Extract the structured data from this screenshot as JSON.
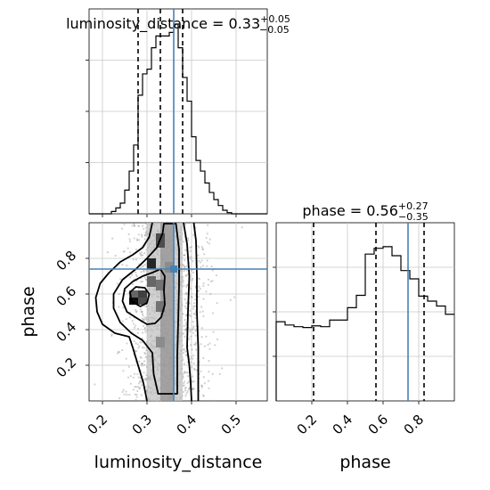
{
  "chart_data": [
    {
      "type": "histogram",
      "panel": "luminosity_distance marginal",
      "title": {
        "prefix": "luminosity_distance = 0.33",
        "sup": "+0.05",
        "sub": "−0.05"
      },
      "xlim": [
        0.17,
        0.57
      ],
      "x_ticks": [
        0.2,
        0.3,
        0.4,
        0.5
      ],
      "y_ticks_count": 3,
      "grid": true,
      "bin_edges": [
        0.17,
        0.18,
        0.19,
        0.2,
        0.21,
        0.22,
        0.23,
        0.24,
        0.25,
        0.26,
        0.27,
        0.28,
        0.29,
        0.3,
        0.31,
        0.32,
        0.33,
        0.34,
        0.35,
        0.36,
        0.37,
        0.38,
        0.39,
        0.4,
        0.41,
        0.42,
        0.43,
        0.44,
        0.45,
        0.46,
        0.47,
        0.48,
        0.49,
        0.5,
        0.51,
        0.52,
        0.53,
        0.54,
        0.55,
        0.56,
        0.57
      ],
      "counts": [
        0,
        0,
        0,
        0,
        0,
        2,
        5,
        9,
        20,
        36,
        58,
        100,
        118,
        122,
        140,
        150,
        150,
        150,
        153,
        160,
        140,
        115,
        95,
        65,
        45,
        36,
        26,
        18,
        12,
        7,
        3,
        1,
        0,
        0,
        0,
        0,
        0,
        0,
        0,
        0
      ],
      "ymax": 160,
      "quantiles": [
        0.28,
        0.33,
        0.38
      ],
      "truth": 0.36
    },
    {
      "type": "scatter-contour",
      "panel": "luminosity_distance vs phase",
      "xlabel": "luminosity_distance",
      "ylabel": "phase",
      "xlim": [
        0.17,
        0.57
      ],
      "ylim": [
        0.0,
        1.0
      ],
      "x_ticks": [
        0.2,
        0.3,
        0.4,
        0.5
      ],
      "y_ticks": [
        0.2,
        0.4,
        0.6,
        0.8
      ],
      "truth": {
        "x": 0.36,
        "y": 0.74
      },
      "contours": [
        [
          [
            0.285,
            0.53
          ],
          [
            0.265,
            0.56
          ],
          [
            0.262,
            0.61
          ],
          [
            0.275,
            0.64
          ],
          [
            0.295,
            0.635
          ],
          [
            0.305,
            0.6
          ],
          [
            0.3,
            0.55
          ]
        ],
        [
          [
            0.3,
            0.43
          ],
          [
            0.28,
            0.46
          ],
          [
            0.255,
            0.5
          ],
          [
            0.245,
            0.56
          ],
          [
            0.25,
            0.63
          ],
          [
            0.268,
            0.67
          ],
          [
            0.29,
            0.7
          ],
          [
            0.312,
            0.72
          ],
          [
            0.33,
            0.74
          ],
          [
            0.34,
            0.7
          ],
          [
            0.338,
            0.62
          ],
          [
            0.34,
            0.54
          ],
          [
            0.332,
            0.47
          ],
          [
            0.318,
            0.435
          ]
        ],
        [
          [
            0.325,
            0.04
          ],
          [
            0.315,
            0.15
          ],
          [
            0.312,
            0.27
          ],
          [
            0.29,
            0.34
          ],
          [
            0.265,
            0.38
          ],
          [
            0.24,
            0.44
          ],
          [
            0.225,
            0.52
          ],
          [
            0.225,
            0.6
          ],
          [
            0.245,
            0.68
          ],
          [
            0.275,
            0.74
          ],
          [
            0.3,
            0.8
          ],
          [
            0.322,
            0.86
          ],
          [
            0.335,
            0.94
          ],
          [
            0.338,
            0.995
          ],
          [
            0.365,
            0.995
          ],
          [
            0.372,
            0.85
          ],
          [
            0.372,
            0.65
          ],
          [
            0.37,
            0.44
          ],
          [
            0.368,
            0.26
          ],
          [
            0.368,
            0.04
          ]
        ],
        [
          [
            0.3,
            0.0
          ],
          [
            0.292,
            0.1
          ],
          [
            0.28,
            0.2
          ],
          [
            0.268,
            0.3
          ],
          [
            0.26,
            0.36
          ],
          [
            0.228,
            0.38
          ],
          [
            0.2,
            0.43
          ],
          [
            0.188,
            0.5
          ],
          [
            0.185,
            0.58
          ],
          [
            0.195,
            0.66
          ],
          [
            0.215,
            0.72
          ],
          [
            0.24,
            0.78
          ],
          [
            0.268,
            0.82
          ],
          [
            0.29,
            0.86
          ],
          [
            0.305,
            0.92
          ],
          [
            0.312,
            1.0
          ]
        ],
        [
          [
            0.382,
            1.0
          ],
          [
            0.39,
            0.88
          ],
          [
            0.395,
            0.7
          ],
          [
            0.392,
            0.5
          ],
          [
            0.39,
            0.3
          ],
          [
            0.395,
            0.2
          ],
          [
            0.398,
            0.1
          ],
          [
            0.4,
            0.0
          ]
        ],
        [
          [
            0.405,
            1.0
          ],
          [
            0.41,
            0.9
          ],
          [
            0.412,
            0.7
          ],
          [
            0.412,
            0.5
          ],
          [
            0.415,
            0.3
          ],
          [
            0.415,
            0.18
          ],
          [
            0.415,
            0.0
          ]
        ]
      ],
      "density_cells": [
        {
          "x0": 0.26,
          "x1": 0.28,
          "y0": 0.54,
          "y1": 0.58,
          "v": 0.95
        },
        {
          "x0": 0.28,
          "x1": 0.3,
          "y0": 0.54,
          "y1": 0.58,
          "v": 0.7
        },
        {
          "x0": 0.28,
          "x1": 0.3,
          "y0": 0.58,
          "y1": 0.62,
          "v": 0.75
        },
        {
          "x0": 0.26,
          "x1": 0.28,
          "y0": 0.58,
          "y1": 0.62,
          "v": 0.6
        },
        {
          "x0": 0.3,
          "x1": 0.32,
          "y0": 0.74,
          "y1": 0.8,
          "v": 0.85
        },
        {
          "x0": 0.3,
          "x1": 0.32,
          "y0": 0.64,
          "y1": 0.7,
          "v": 0.6
        },
        {
          "x0": 0.32,
          "x1": 0.34,
          "y0": 0.86,
          "y1": 0.94,
          "v": 0.7
        },
        {
          "x0": 0.32,
          "x1": 0.34,
          "y0": 0.62,
          "y1": 0.68,
          "v": 0.55
        },
        {
          "x0": 0.32,
          "x1": 0.34,
          "y0": 0.5,
          "y1": 0.56,
          "v": 0.55
        },
        {
          "x0": 0.34,
          "x1": 0.36,
          "y0": 0.72,
          "y1": 0.78,
          "v": 0.45
        },
        {
          "x0": 0.32,
          "x1": 0.34,
          "y0": 0.3,
          "y1": 0.36,
          "v": 0.45
        }
      ],
      "band": {
        "x0": 0.3,
        "x1": 0.38
      }
    },
    {
      "type": "histogram",
      "panel": "phase marginal",
      "title": {
        "prefix": "phase = 0.56",
        "sup": "+0.27",
        "sub": "−0.35"
      },
      "xlabel": "phase",
      "xlim": [
        0.0,
        1.0
      ],
      "x_ticks": [
        0.2,
        0.4,
        0.6,
        0.8
      ],
      "y_ticks_count": 3,
      "grid": true,
      "bin_edges": [
        0.0,
        0.05,
        0.1,
        0.15,
        0.2,
        0.25,
        0.3,
        0.35,
        0.4,
        0.45,
        0.5,
        0.55,
        0.6,
        0.65,
        0.7,
        0.75,
        0.8,
        0.85,
        0.9,
        0.95,
        1.0
      ],
      "counts": [
        96,
        92,
        90,
        89,
        91,
        90,
        98,
        98,
        113,
        128,
        178,
        185,
        187,
        176,
        158,
        148,
        127,
        121,
        115,
        105
      ],
      "ymax": 200,
      "quantiles": [
        0.21,
        0.56,
        0.83
      ],
      "truth": 0.74
    }
  ]
}
